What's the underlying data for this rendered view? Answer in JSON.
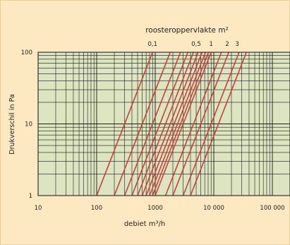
{
  "chart_data": {
    "type": "line",
    "title": "",
    "top_axis_label": "roosteroppervlakte m²",
    "top_labels": [
      {
        "text": "0,1",
        "x": 900
      },
      {
        "text": "0,5",
        "x": 5000
      },
      {
        "text": "1",
        "x": 9000
      },
      {
        "text": "2",
        "x": 17000
      },
      {
        "text": "3",
        "x": 25000
      }
    ],
    "xlabel": "debiet m³/h",
    "ylabel": "Drukverschil in Pa",
    "x_scale": "log",
    "y_scale": "log",
    "xlim": [
      10,
      200000
    ],
    "ylim": [
      1,
      100
    ],
    "x_ticks": [
      {
        "value": 10,
        "label": "10"
      },
      {
        "value": 100,
        "label": "100"
      },
      {
        "value": 1000,
        "label": "1000"
      },
      {
        "value": 10000,
        "label": "10 000"
      },
      {
        "value": 100000,
        "label": "100 000"
      }
    ],
    "y_ticks": [
      {
        "value": 1,
        "label": "1"
      },
      {
        "value": 10,
        "label": "10"
      },
      {
        "value": 100,
        "label": "100"
      }
    ],
    "grid": true,
    "line_color": "#c8413a",
    "plot_background": "#dce5bf",
    "series": [
      {
        "x": [
          100,
          900
        ],
        "y": [
          1,
          100
        ]
      },
      {
        "x": [
          200,
          1800
        ],
        "y": [
          1,
          100
        ]
      },
      {
        "x": [
          300,
          2700
        ],
        "y": [
          1,
          100
        ]
      },
      {
        "x": [
          400,
          3600
        ],
        "y": [
          1,
          100
        ]
      },
      {
        "x": [
          500,
          4500
        ],
        "y": [
          1,
          100
        ]
      },
      {
        "x": [
          600,
          5400
        ],
        "y": [
          1,
          100
        ]
      },
      {
        "x": [
          700,
          6300
        ],
        "y": [
          1,
          100
        ]
      },
      {
        "x": [
          800,
          7200
        ],
        "y": [
          1,
          100
        ]
      },
      {
        "x": [
          900,
          8100
        ],
        "y": [
          1,
          100
        ]
      },
      {
        "x": [
          1000,
          9000
        ],
        "y": [
          1,
          100
        ]
      },
      {
        "x": [
          1500,
          13500
        ],
        "y": [
          1,
          100
        ]
      },
      {
        "x": [
          2000,
          18000
        ],
        "y": [
          1,
          100
        ]
      },
      {
        "x": [
          3000,
          27000
        ],
        "y": [
          1,
          100
        ]
      },
      {
        "x": [
          4000,
          36000
        ],
        "y": [
          1,
          100
        ]
      }
    ]
  }
}
